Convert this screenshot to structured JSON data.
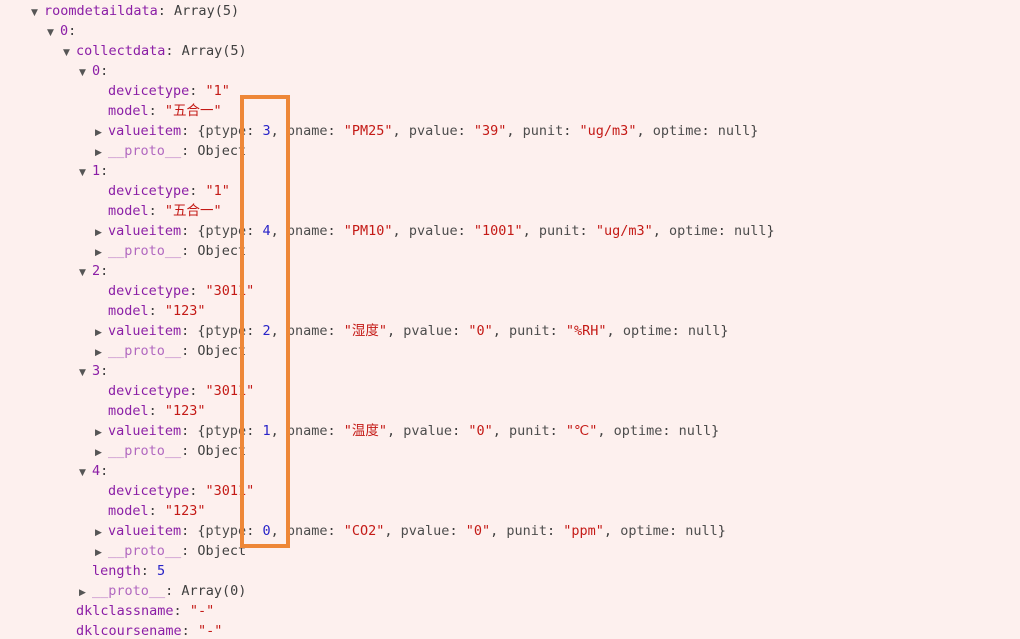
{
  "colors": {
    "background": "#fdf0ee",
    "property_key": "#8b1ea6",
    "proto_key": "#b168c0",
    "string_value": "#c41a16",
    "number_value": "#2823c8",
    "plain_text": "#3f3f3f",
    "arrow": "#565656",
    "highlight_box": "#ee8737"
  },
  "annotation": {
    "shape": "rectangle",
    "color": "#ee8737",
    "highlighted_values": [
      "3",
      "4",
      "2",
      "1",
      "0"
    ]
  },
  "console": {
    "lines": [
      {
        "indent": 0,
        "arrow": "down",
        "segs": [
          [
            "key",
            "roomdetaildata"
          ],
          [
            "plain",
            ": Array(5)"
          ]
        ]
      },
      {
        "indent": 1,
        "arrow": "down",
        "segs": [
          [
            "key",
            "0"
          ],
          [
            "plain",
            ":"
          ]
        ]
      },
      {
        "indent": 2,
        "arrow": "down",
        "segs": [
          [
            "key",
            "collectdata"
          ],
          [
            "plain",
            ": Array(5)"
          ]
        ]
      },
      {
        "indent": 3,
        "arrow": "down",
        "segs": [
          [
            "key",
            "0"
          ],
          [
            "plain",
            ":"
          ]
        ]
      },
      {
        "indent": 4,
        "arrow": "none",
        "segs": [
          [
            "key",
            "devicetype"
          ],
          [
            "plain",
            ": "
          ],
          [
            "str",
            "\"1\""
          ]
        ]
      },
      {
        "indent": 4,
        "arrow": "none",
        "segs": [
          [
            "key",
            "model"
          ],
          [
            "plain",
            ": "
          ],
          [
            "str",
            "\"五合一\""
          ]
        ]
      },
      {
        "indent": 4,
        "arrow": "right",
        "segs": [
          [
            "key",
            "valueitem"
          ],
          [
            "plain",
            ": {"
          ],
          [
            "pkey",
            "ptype"
          ],
          [
            "plain",
            ": "
          ],
          [
            "num",
            "3"
          ],
          [
            "plain",
            ", "
          ],
          [
            "pkey",
            "pname"
          ],
          [
            "plain",
            ": "
          ],
          [
            "str",
            "\"PM25\""
          ],
          [
            "plain",
            ", "
          ],
          [
            "pkey",
            "pvalue"
          ],
          [
            "plain",
            ": "
          ],
          [
            "str",
            "\"39\""
          ],
          [
            "plain",
            ", "
          ],
          [
            "pkey",
            "punit"
          ],
          [
            "plain",
            ": "
          ],
          [
            "str",
            "\"ug/m3\""
          ],
          [
            "plain",
            ", "
          ],
          [
            "pkey",
            "optime"
          ],
          [
            "plain",
            ": "
          ],
          [
            "nul",
            "null"
          ],
          [
            "plain",
            "}"
          ]
        ]
      },
      {
        "indent": 4,
        "arrow": "right",
        "segs": [
          [
            "proto",
            "__proto__"
          ],
          [
            "plain",
            ": Object"
          ]
        ]
      },
      {
        "indent": 3,
        "arrow": "down",
        "segs": [
          [
            "key",
            "1"
          ],
          [
            "plain",
            ":"
          ]
        ]
      },
      {
        "indent": 4,
        "arrow": "none",
        "segs": [
          [
            "key",
            "devicetype"
          ],
          [
            "plain",
            ": "
          ],
          [
            "str",
            "\"1\""
          ]
        ]
      },
      {
        "indent": 4,
        "arrow": "none",
        "segs": [
          [
            "key",
            "model"
          ],
          [
            "plain",
            ": "
          ],
          [
            "str",
            "\"五合一\""
          ]
        ]
      },
      {
        "indent": 4,
        "arrow": "right",
        "segs": [
          [
            "key",
            "valueitem"
          ],
          [
            "plain",
            ": {"
          ],
          [
            "pkey",
            "ptype"
          ],
          [
            "plain",
            ": "
          ],
          [
            "num",
            "4"
          ],
          [
            "plain",
            ", "
          ],
          [
            "pkey",
            "pname"
          ],
          [
            "plain",
            ": "
          ],
          [
            "str",
            "\"PM10\""
          ],
          [
            "plain",
            ", "
          ],
          [
            "pkey",
            "pvalue"
          ],
          [
            "plain",
            ": "
          ],
          [
            "str",
            "\"1001\""
          ],
          [
            "plain",
            ", "
          ],
          [
            "pkey",
            "punit"
          ],
          [
            "plain",
            ": "
          ],
          [
            "str",
            "\"ug/m3\""
          ],
          [
            "plain",
            ", "
          ],
          [
            "pkey",
            "optime"
          ],
          [
            "plain",
            ": "
          ],
          [
            "nul",
            "null"
          ],
          [
            "plain",
            "}"
          ]
        ]
      },
      {
        "indent": 4,
        "arrow": "right",
        "segs": [
          [
            "proto",
            "__proto__"
          ],
          [
            "plain",
            ": Object"
          ]
        ]
      },
      {
        "indent": 3,
        "arrow": "down",
        "segs": [
          [
            "key",
            "2"
          ],
          [
            "plain",
            ":"
          ]
        ]
      },
      {
        "indent": 4,
        "arrow": "none",
        "segs": [
          [
            "key",
            "devicetype"
          ],
          [
            "plain",
            ": "
          ],
          [
            "str",
            "\"3011\""
          ]
        ]
      },
      {
        "indent": 4,
        "arrow": "none",
        "segs": [
          [
            "key",
            "model"
          ],
          [
            "plain",
            ": "
          ],
          [
            "str",
            "\"123\""
          ]
        ]
      },
      {
        "indent": 4,
        "arrow": "right",
        "segs": [
          [
            "key",
            "valueitem"
          ],
          [
            "plain",
            ": {"
          ],
          [
            "pkey",
            "ptype"
          ],
          [
            "plain",
            ": "
          ],
          [
            "num",
            "2"
          ],
          [
            "plain",
            ", "
          ],
          [
            "pkey",
            "pname"
          ],
          [
            "plain",
            ": "
          ],
          [
            "str",
            "\"湿度\""
          ],
          [
            "plain",
            ", "
          ],
          [
            "pkey",
            "pvalue"
          ],
          [
            "plain",
            ": "
          ],
          [
            "str",
            "\"0\""
          ],
          [
            "plain",
            ", "
          ],
          [
            "pkey",
            "punit"
          ],
          [
            "plain",
            ": "
          ],
          [
            "str",
            "\"%RH\""
          ],
          [
            "plain",
            ", "
          ],
          [
            "pkey",
            "optime"
          ],
          [
            "plain",
            ": "
          ],
          [
            "nul",
            "null"
          ],
          [
            "plain",
            "}"
          ]
        ]
      },
      {
        "indent": 4,
        "arrow": "right",
        "segs": [
          [
            "proto",
            "__proto__"
          ],
          [
            "plain",
            ": Object"
          ]
        ]
      },
      {
        "indent": 3,
        "arrow": "down",
        "segs": [
          [
            "key",
            "3"
          ],
          [
            "plain",
            ":"
          ]
        ]
      },
      {
        "indent": 4,
        "arrow": "none",
        "segs": [
          [
            "key",
            "devicetype"
          ],
          [
            "plain",
            ": "
          ],
          [
            "str",
            "\"3011\""
          ]
        ]
      },
      {
        "indent": 4,
        "arrow": "none",
        "segs": [
          [
            "key",
            "model"
          ],
          [
            "plain",
            ": "
          ],
          [
            "str",
            "\"123\""
          ]
        ]
      },
      {
        "indent": 4,
        "arrow": "right",
        "segs": [
          [
            "key",
            "valueitem"
          ],
          [
            "plain",
            ": {"
          ],
          [
            "pkey",
            "ptype"
          ],
          [
            "plain",
            ": "
          ],
          [
            "num",
            "1"
          ],
          [
            "plain",
            ", "
          ],
          [
            "pkey",
            "pname"
          ],
          [
            "plain",
            ": "
          ],
          [
            "str",
            "\"温度\""
          ],
          [
            "plain",
            ", "
          ],
          [
            "pkey",
            "pvalue"
          ],
          [
            "plain",
            ": "
          ],
          [
            "str",
            "\"0\""
          ],
          [
            "plain",
            ", "
          ],
          [
            "pkey",
            "punit"
          ],
          [
            "plain",
            ": "
          ],
          [
            "str",
            "\"℃\""
          ],
          [
            "plain",
            ", "
          ],
          [
            "pkey",
            "optime"
          ],
          [
            "plain",
            ": "
          ],
          [
            "nul",
            "null"
          ],
          [
            "plain",
            "}"
          ]
        ]
      },
      {
        "indent": 4,
        "arrow": "right",
        "segs": [
          [
            "proto",
            "__proto__"
          ],
          [
            "plain",
            ": Object"
          ]
        ]
      },
      {
        "indent": 3,
        "arrow": "down",
        "segs": [
          [
            "key",
            "4"
          ],
          [
            "plain",
            ":"
          ]
        ]
      },
      {
        "indent": 4,
        "arrow": "none",
        "segs": [
          [
            "key",
            "devicetype"
          ],
          [
            "plain",
            ": "
          ],
          [
            "str",
            "\"3011\""
          ]
        ]
      },
      {
        "indent": 4,
        "arrow": "none",
        "segs": [
          [
            "key",
            "model"
          ],
          [
            "plain",
            ": "
          ],
          [
            "str",
            "\"123\""
          ]
        ]
      },
      {
        "indent": 4,
        "arrow": "right",
        "segs": [
          [
            "key",
            "valueitem"
          ],
          [
            "plain",
            ": {"
          ],
          [
            "pkey",
            "ptype"
          ],
          [
            "plain",
            ": "
          ],
          [
            "num",
            "0"
          ],
          [
            "plain",
            ", "
          ],
          [
            "pkey",
            "pname"
          ],
          [
            "plain",
            ": "
          ],
          [
            "str",
            "\"CO2\""
          ],
          [
            "plain",
            ", "
          ],
          [
            "pkey",
            "pvalue"
          ],
          [
            "plain",
            ": "
          ],
          [
            "str",
            "\"0\""
          ],
          [
            "plain",
            ", "
          ],
          [
            "pkey",
            "punit"
          ],
          [
            "plain",
            ": "
          ],
          [
            "str",
            "\"ppm\""
          ],
          [
            "plain",
            ", "
          ],
          [
            "pkey",
            "optime"
          ],
          [
            "plain",
            ": "
          ],
          [
            "nul",
            "null"
          ],
          [
            "plain",
            "}"
          ]
        ]
      },
      {
        "indent": 4,
        "arrow": "right",
        "segs": [
          [
            "proto",
            "__proto__"
          ],
          [
            "plain",
            ": Object"
          ]
        ]
      },
      {
        "indent": 3,
        "arrow": "none",
        "segs": [
          [
            "key",
            "length"
          ],
          [
            "plain",
            ": "
          ],
          [
            "num",
            "5"
          ]
        ]
      },
      {
        "indent": 3,
        "arrow": "right",
        "segs": [
          [
            "proto",
            "__proto__"
          ],
          [
            "plain",
            ": Array(0)"
          ]
        ]
      },
      {
        "indent": 2,
        "arrow": "none",
        "segs": [
          [
            "key",
            "dklclassname"
          ],
          [
            "plain",
            ": "
          ],
          [
            "str",
            "\"-\""
          ]
        ]
      },
      {
        "indent": 2,
        "arrow": "none",
        "segs": [
          [
            "key",
            "dklcoursename"
          ],
          [
            "plain",
            ": "
          ],
          [
            "str",
            "\"-\""
          ]
        ]
      }
    ]
  }
}
